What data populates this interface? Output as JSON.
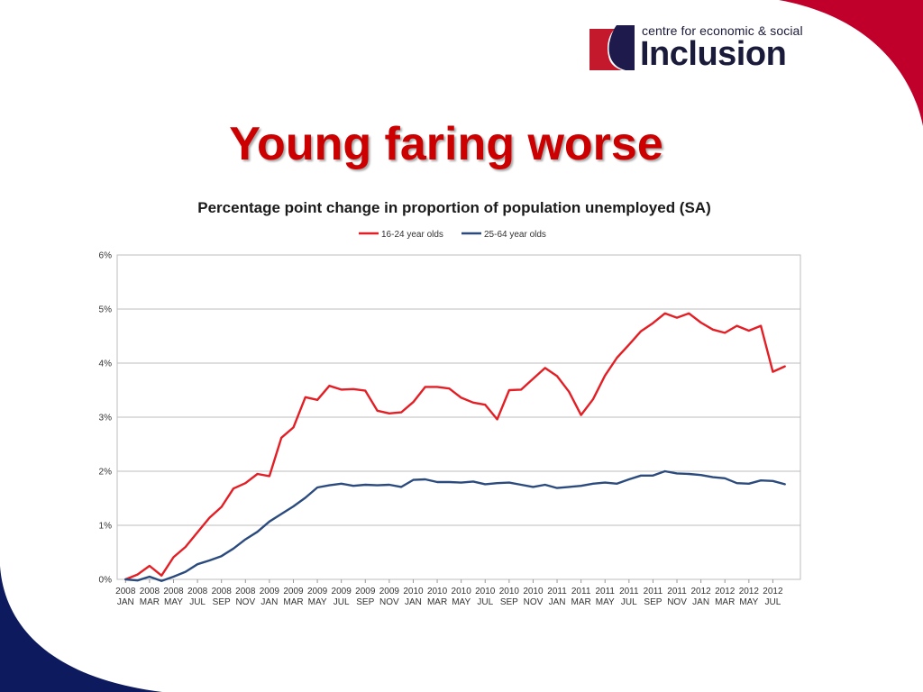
{
  "logo": {
    "small_text": "centre for economic & social",
    "big_text": "Inclusion",
    "colors": {
      "red": "#c4182d",
      "navy": "#1f1a4c",
      "text": "#1a1a3a"
    }
  },
  "slide": {
    "title": "Young faring worse",
    "title_color": "#cc0000"
  },
  "decor": {
    "corner_top_right": "#c0002a",
    "corner_bottom_left": "#0d1a5e"
  },
  "chart_data": {
    "type": "line",
    "title": "Percentage point change in proportion of population unemployed (SA)",
    "legend_position": "top-center",
    "grid": true,
    "ylim": [
      0,
      6
    ],
    "yticks": [
      "0%",
      "1%",
      "2%",
      "3%",
      "4%",
      "5%",
      "6%"
    ],
    "x_labels": [
      [
        "2008",
        "JAN"
      ],
      [
        "2008",
        "MAR"
      ],
      [
        "2008",
        "MAY"
      ],
      [
        "2008",
        "JUL"
      ],
      [
        "2008",
        "SEP"
      ],
      [
        "2008",
        "NOV"
      ],
      [
        "2009",
        "JAN"
      ],
      [
        "2009",
        "MAR"
      ],
      [
        "2009",
        "MAY"
      ],
      [
        "2009",
        "JUL"
      ],
      [
        "2009",
        "SEP"
      ],
      [
        "2009",
        "NOV"
      ],
      [
        "2010",
        "JAN"
      ],
      [
        "2010",
        "MAR"
      ],
      [
        "2010",
        "MAY"
      ],
      [
        "2010",
        "JUL"
      ],
      [
        "2010",
        "SEP"
      ],
      [
        "2010",
        "NOV"
      ],
      [
        "2011",
        "JAN"
      ],
      [
        "2011",
        "MAR"
      ],
      [
        "2011",
        "MAY"
      ],
      [
        "2011",
        "JUL"
      ],
      [
        "2011",
        "SEP"
      ],
      [
        "2011",
        "NOV"
      ],
      [
        "2012",
        "JAN"
      ],
      [
        "2012",
        "MAR"
      ],
      [
        "2012",
        "MAY"
      ],
      [
        "2012",
        "JUL"
      ]
    ],
    "series": [
      {
        "name": "16-24 year olds",
        "color": "#e31e24",
        "values": [
          0,
          0.09,
          0.25,
          0.07,
          0.41,
          0.6,
          0.87,
          1.14,
          1.34,
          1.68,
          1.78,
          1.95,
          1.91,
          2.62,
          2.81,
          3.37,
          3.32,
          3.58,
          3.51,
          3.52,
          3.49,
          3.12,
          3.07,
          3.09,
          3.28,
          3.56,
          3.56,
          3.53,
          3.36,
          3.27,
          3.23,
          2.96,
          3.5,
          3.51,
          3.71,
          3.91,
          3.76,
          3.47,
          3.04,
          3.33,
          3.77,
          4.1,
          4.34,
          4.59,
          4.74,
          4.92,
          4.84,
          4.92,
          4.75,
          4.62,
          4.56,
          4.69,
          4.6,
          4.69,
          3.84,
          3.94
        ]
      },
      {
        "name": "25-64 year olds",
        "color": "#2b4b7e",
        "values": [
          0,
          -0.02,
          0.05,
          -0.03,
          0.05,
          0.14,
          0.28,
          0.35,
          0.43,
          0.57,
          0.74,
          0.88,
          1.07,
          1.21,
          1.35,
          1.51,
          1.7,
          1.74,
          1.77,
          1.73,
          1.75,
          1.74,
          1.75,
          1.71,
          1.84,
          1.85,
          1.8,
          1.8,
          1.79,
          1.81,
          1.76,
          1.78,
          1.79,
          1.75,
          1.71,
          1.75,
          1.69,
          1.71,
          1.73,
          1.77,
          1.79,
          1.77,
          1.85,
          1.92,
          1.92,
          2.0,
          1.96,
          1.95,
          1.93,
          1.89,
          1.87,
          1.78,
          1.77,
          1.83,
          1.82,
          1.76
        ]
      }
    ]
  }
}
